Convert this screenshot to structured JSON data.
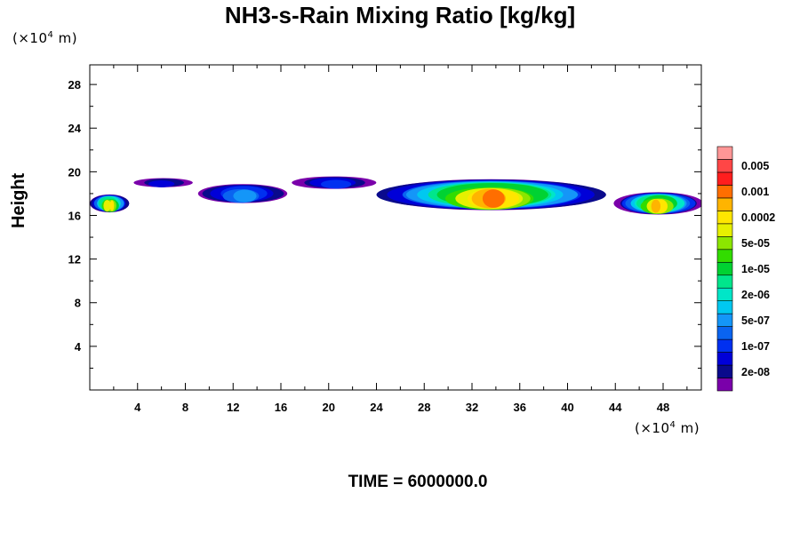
{
  "chart_data": {
    "type": "heatmap",
    "title": "NH3-s-Rain Mixing Ratio [kg/kg]",
    "ylabel": "Height",
    "xlabel": "",
    "y_unit_label": "(×10⁴ m)",
    "x_unit_label": "(×10⁴ m)",
    "footer": "TIME = 6000000.0",
    "x_ticks": [
      "4",
      "8",
      "12",
      "16",
      "20",
      "24",
      "28",
      "32",
      "36",
      "40",
      "44",
      "48"
    ],
    "y_ticks": [
      "4",
      "8",
      "12",
      "16",
      "20",
      "24",
      "28"
    ],
    "xlim": [
      0,
      51.2
    ],
    "ylim": [
      0,
      29.8
    ],
    "colorbar": {
      "levels": [
        "",
        "2e-08",
        "",
        "1e-07",
        "",
        "5e-07",
        "",
        "2e-06",
        "",
        "1e-05",
        "",
        "5e-05",
        "",
        "0.0002",
        "",
        "0.001",
        "",
        "0.005",
        ""
      ],
      "colors": [
        "#7a00aa",
        "#0a0a8c",
        "#0000d8",
        "#0030f0",
        "#0a64f0",
        "#1496f8",
        "#00c8f0",
        "#00e6c8",
        "#00e68c",
        "#00d232",
        "#32dc00",
        "#8ce600",
        "#e6f000",
        "#ffe600",
        "#ffb400",
        "#ff6e00",
        "#ff1e1e",
        "#ff4646",
        "#ff9696"
      ]
    },
    "cloud_bands": [
      {
        "x_start": 0.0,
        "x_end": 3.3,
        "y_center": 17.1,
        "thickness": 1.4,
        "peak_level": 13
      },
      {
        "x_start": 3.7,
        "x_end": 8.6,
        "y_center": 19.0,
        "thickness": 0.6,
        "peak_level": 2
      },
      {
        "x_start": 9.0,
        "x_end": 16.6,
        "y_center": 18.0,
        "thickness": 1.5,
        "peak_level": 5
      },
      {
        "x_start": 17.0,
        "x_end": 23.9,
        "y_center": 19.0,
        "thickness": 0.9,
        "peak_level": 3
      },
      {
        "x_start": 23.9,
        "x_end": 43.3,
        "y_center": 17.9,
        "thickness": 2.6,
        "peak_level": 15
      },
      {
        "x_start": 44.0,
        "x_end": 51.2,
        "y_center": 17.1,
        "thickness": 1.8,
        "peak_level": 14
      }
    ]
  },
  "colors": {
    "frame": "#000000",
    "background": "#ffffff"
  }
}
